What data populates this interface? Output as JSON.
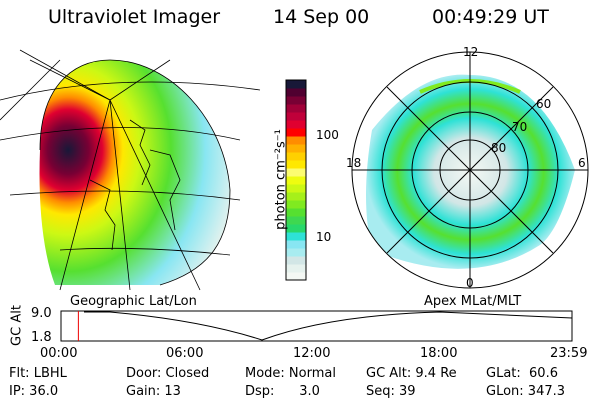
{
  "header": {
    "instrument": "Ultraviolet Imager",
    "date": "14 Sep 00",
    "time": "00:49:29 UT"
  },
  "colorbar": {
    "label": "photon cm⁻²s⁻¹",
    "ticks": [
      "100",
      "10"
    ],
    "colors": [
      "#f4f8f4",
      "#e6f2ee",
      "#d2e6e6",
      "#a8ecf0",
      "#88e6f2",
      "#2ee2d6",
      "#28d86a",
      "#3ed850",
      "#56e030",
      "#80ea20",
      "#a6f01a",
      "#ccf814",
      "#eefc10",
      "#fcfc70",
      "#ffe800",
      "#ffd000",
      "#ffb000",
      "#ff8c00",
      "#ff0000",
      "#e00030",
      "#c0003a",
      "#a00038",
      "#780034",
      "#500030",
      "#181838"
    ]
  },
  "polar": {
    "labels": {
      "mlt12": "12",
      "mlt18": "18",
      "mlt6": "6",
      "mlt0": "0",
      "lat60": "60",
      "lat70": "70",
      "lat80": "80"
    }
  },
  "timeline": {
    "left_label": "Geographic Lat/Lon",
    "right_label": "Apex MLat/MLT",
    "axis_title": "GC Alt",
    "y_ticks": [
      "9.0",
      "1.8"
    ],
    "x_ticks": [
      "00:00",
      "06:00",
      "12:00",
      "18:00",
      "23:59"
    ],
    "current_time_fraction": 0.034
  },
  "info": {
    "filter": "Flt: LBHL",
    "ip": "IP: 36.0",
    "door": "Door: Closed",
    "gain": "Gain: 13",
    "mode": "Mode: Normal",
    "dsp": "Dsp:      3.0",
    "gc_alt": "GC Alt: 9.4 Re",
    "seq": "Seq: 39",
    "glat": "GLat:  60.6",
    "glon": "GLon: 347.3"
  }
}
